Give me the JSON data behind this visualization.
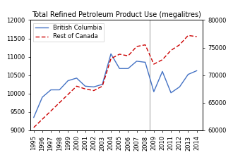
{
  "title": "Total Refined Petroleum Product Use (megalitres)",
  "years": [
    1995,
    1996,
    1997,
    1998,
    1999,
    2000,
    2001,
    2002,
    2003,
    2004,
    2005,
    2006,
    2007,
    2008,
    2009,
    2010,
    2011,
    2012,
    2013,
    2014
  ],
  "bc": [
    9350,
    9900,
    10100,
    10100,
    10350,
    10420,
    10200,
    10180,
    10250,
    11080,
    10680,
    10680,
    10880,
    10850,
    10050,
    10600,
    10020,
    10180,
    10520,
    10620
  ],
  "roc": [
    60500,
    62000,
    63500,
    65000,
    66500,
    68000,
    67500,
    67200,
    68000,
    73000,
    73800,
    73500,
    75200,
    75500,
    72000,
    72800,
    74500,
    75500,
    77200,
    77000
  ],
  "bc_color": "#4472C4",
  "roc_color": "#CC0000",
  "vline_x": 2008.5,
  "vline_color": "#aaaaaa",
  "ylim_left": [
    9000,
    12000
  ],
  "ylim_right": [
    60000,
    80000
  ],
  "yticks_left": [
    9000,
    9500,
    10000,
    10500,
    11000,
    11500,
    12000
  ],
  "yticks_right": [
    60000,
    65000,
    70000,
    75000,
    80000
  ],
  "legend_bc": "British Columbia",
  "legend_roc": "Rest of Canada",
  "bg_color": "#ffffff",
  "title_fontsize": 7.0,
  "tick_fontsize": 6.0,
  "legend_fontsize": 6.0
}
